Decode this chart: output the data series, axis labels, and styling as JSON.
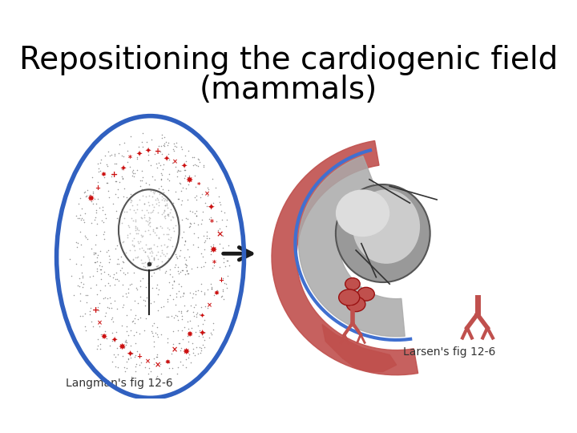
{
  "title_line1": "Repositioning the cardiogenic field",
  "title_line2": "(mammals)",
  "title_fontsize": 28,
  "title_color": "#000000",
  "bg_color": "#ffffff",
  "label_left": "Langman's fig 12-6",
  "label_right": "Larsen's fig 12-6",
  "label_fontsize": 10,
  "arrow_color": "#1a1a1a",
  "blue_outline": "#3060c0",
  "red_tissue": "#c0504d",
  "gray_tissue": "#888888",
  "light_gray": "#bbbbbb",
  "dark_speckle": "#333333"
}
